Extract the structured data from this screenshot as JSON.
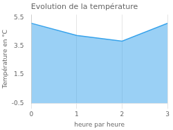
{
  "chart_data": {
    "type": "area",
    "title": "Evolution de la température",
    "xlabel": "heure par heure",
    "ylabel": "Température en °C",
    "x": [
      0,
      1,
      2,
      3
    ],
    "values": [
      5.1,
      4.25,
      3.85,
      5.1
    ],
    "xlim": [
      0,
      3
    ],
    "xticks": [
      0,
      1,
      2,
      3
    ],
    "ylim": [
      -0.5,
      5.7
    ],
    "yticks": [
      -0.5,
      1.5,
      3.5,
      5.5
    ],
    "grid": "x"
  }
}
